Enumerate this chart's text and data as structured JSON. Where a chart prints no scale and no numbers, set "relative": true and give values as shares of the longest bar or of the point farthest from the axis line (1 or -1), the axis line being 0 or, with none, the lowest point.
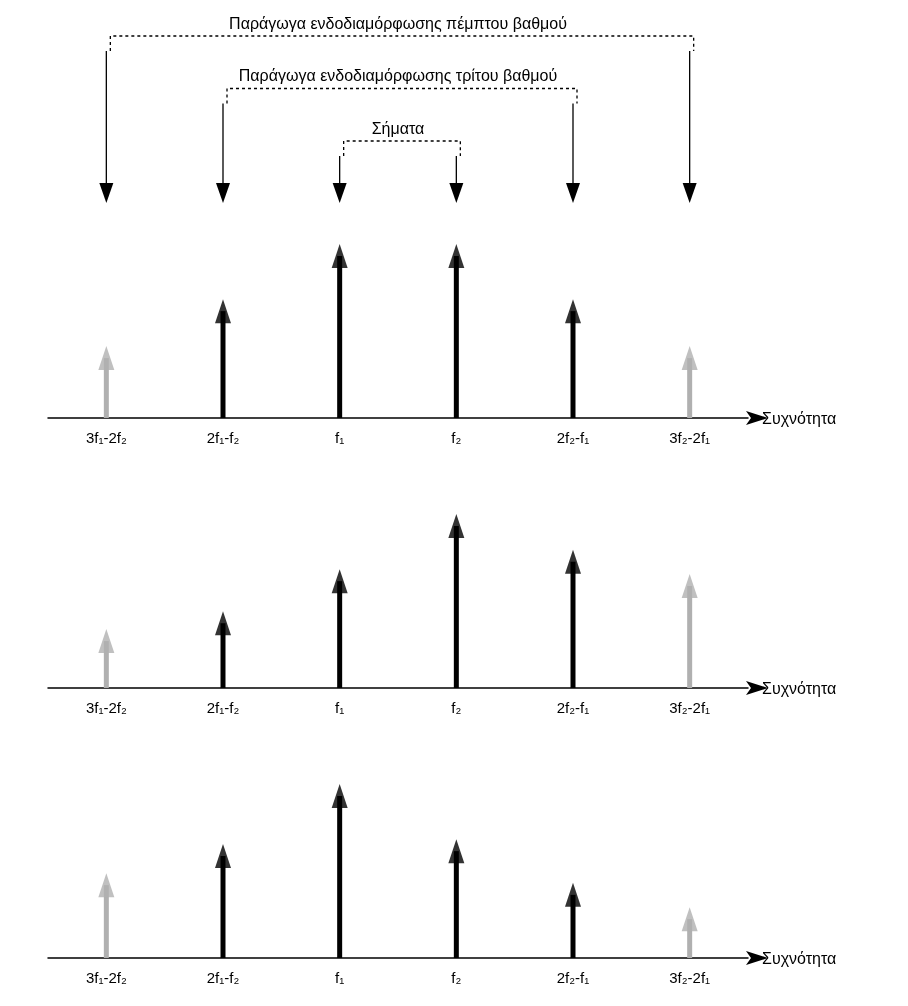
{
  "chart_data": [
    {
      "type": "lollipop",
      "relative": true,
      "marker": "triangle",
      "xlabel": "Συχνότητα",
      "categories": [
        "3f₁-2f₂",
        "2f₁-f₂",
        "f₁",
        "f₂",
        "2f₂-f₁",
        "3f₂-2f₁"
      ],
      "values": [
        0.37,
        0.66,
        1,
        1,
        0.66,
        0.37
      ],
      "colors": [
        "#b0b0b0",
        "#000000",
        "#000000",
        "#000000",
        "#000000",
        "#b0b0b0"
      ],
      "annotations": [
        "Παράγωγα ενδοδιαμόρφωσης πέμπτου βαθμού",
        "Παράγωγα ενδοδιαμόρφωσης τρίτου βαθμού",
        "Σήματα"
      ]
    },
    {
      "type": "lollipop",
      "relative": true,
      "marker": "triangle",
      "xlabel": "Συχνότητα",
      "categories": [
        "3f₁-2f₂",
        "2f₁-f₂",
        "f₁",
        "f₂",
        "2f₂-f₁",
        "3f₂-2f₁"
      ],
      "values": [
        0.29,
        0.4,
        0.66,
        1,
        0.78,
        0.63
      ],
      "colors": [
        "#b0b0b0",
        "#000000",
        "#000000",
        "#000000",
        "#000000",
        "#b0b0b0"
      ]
    },
    {
      "type": "lollipop",
      "relative": true,
      "marker": "triangle",
      "xlabel": "Συχνότητα",
      "categories": [
        "3f₁-2f₂",
        "2f₁-f₂",
        "f₁",
        "f₂",
        "2f₂-f₁",
        "3f₂-2f₁"
      ],
      "values": [
        0.45,
        0.63,
        1,
        0.66,
        0.39,
        0.24
      ],
      "colors": [
        "#b0b0b0",
        "#000000",
        "#000000",
        "#000000",
        "#000000",
        "#b0b0b0"
      ]
    }
  ]
}
